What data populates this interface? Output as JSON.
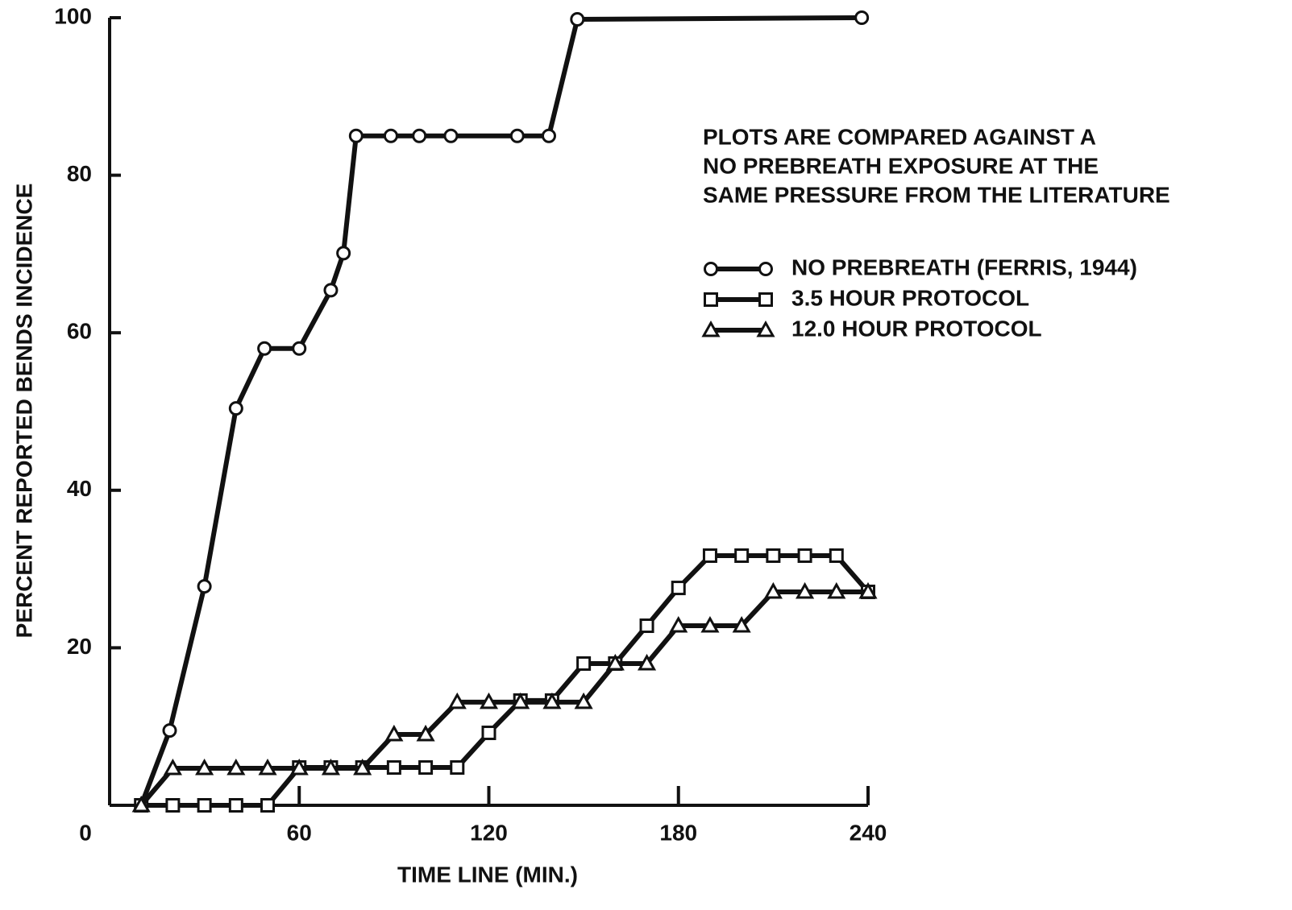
{
  "chart_data": {
    "type": "line",
    "xlabel": "TIME LINE (MIN.)",
    "ylabel": "PERCENT REPORTED BENDS INCIDENCE",
    "annotation": [
      "PLOTS ARE COMPARED AGAINST A",
      "NO PREBREATH EXPOSURE AT THE",
      "SAME PRESSURE FROM THE LITERATURE"
    ],
    "xlim": [
      0,
      240
    ],
    "ylim": [
      0,
      100
    ],
    "xticks": [
      0,
      60,
      120,
      180,
      240
    ],
    "yticks": [
      20,
      40,
      60,
      80,
      100
    ],
    "series": [
      {
        "name": "NO PREBREATH (FERRIS, 1944)",
        "color": "#111111",
        "marker": "circle",
        "x": [
          10,
          19,
          30,
          40,
          49,
          60,
          70,
          74,
          78,
          89,
          98,
          108,
          129,
          139,
          148,
          238
        ],
        "values": [
          0,
          9.5,
          27.8,
          50.4,
          58,
          58,
          65.4,
          70.1,
          85,
          85,
          85,
          85,
          85,
          85,
          99.8,
          100
        ]
      },
      {
        "name": "3.5 HOUR PROTOCOL",
        "color": "#111111",
        "marker": "square",
        "x": [
          10,
          20,
          30,
          40,
          50,
          60,
          70,
          80,
          90,
          100,
          110,
          120,
          130,
          140,
          150,
          160,
          170,
          180,
          190,
          200,
          210,
          220,
          230,
          240
        ],
        "values": [
          0,
          0,
          0,
          0,
          0,
          4.8,
          4.8,
          4.8,
          4.8,
          4.8,
          4.8,
          9.2,
          13.3,
          13.3,
          18,
          18,
          22.8,
          27.6,
          31.7,
          31.7,
          31.7,
          31.7,
          31.7,
          27.1
        ]
      },
      {
        "name": "12.0 HOUR PROTOCOL",
        "color": "#111111",
        "marker": "triangle",
        "x": [
          10,
          20,
          30,
          40,
          50,
          60,
          70,
          80,
          90,
          100,
          110,
          120,
          130,
          140,
          150,
          160,
          170,
          180,
          190,
          200,
          210,
          220,
          230,
          240
        ],
        "values": [
          0,
          4.7,
          4.7,
          4.7,
          4.7,
          4.7,
          4.7,
          4.7,
          9,
          9,
          13.1,
          13.1,
          13.1,
          13.1,
          13.1,
          18,
          18,
          22.8,
          22.8,
          22.8,
          27.1,
          27.1,
          27.1,
          27.1
        ]
      }
    ]
  }
}
